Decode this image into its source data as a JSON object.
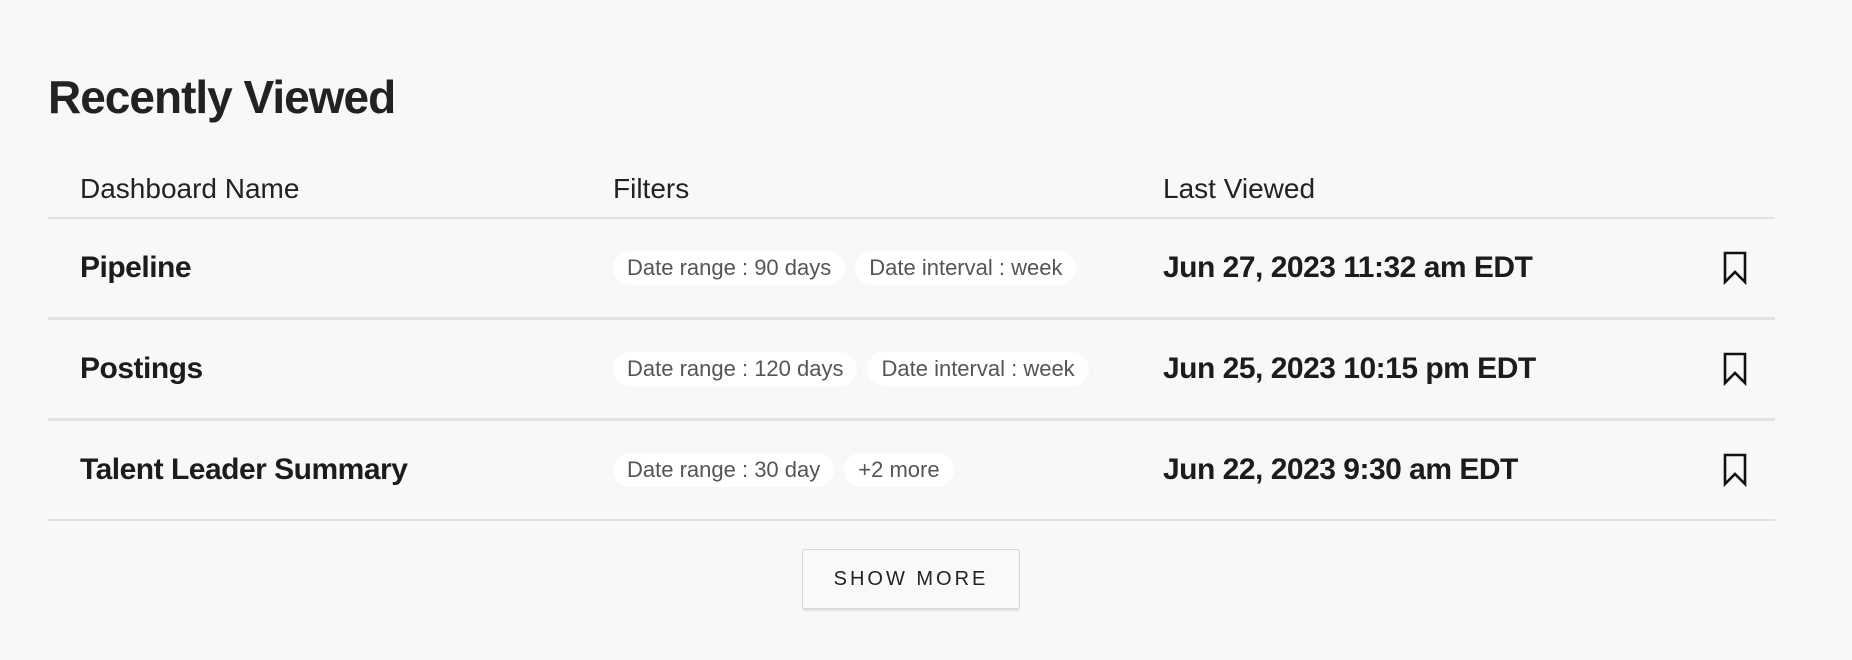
{
  "section_title": "Recently Viewed",
  "columns": {
    "name": "Dashboard Name",
    "filters": "Filters",
    "last_viewed": "Last Viewed"
  },
  "rows": [
    {
      "name": "Pipeline",
      "filters": [
        "Date range : 90 days",
        "Date interval : week"
      ],
      "last_viewed": "Jun 27, 2023 11:32 am EDT",
      "icon": "bookmark-icon"
    },
    {
      "name": "Postings",
      "filters": [
        "Date range : 120 days",
        "Date interval : week"
      ],
      "last_viewed": "Jun 25, 2023 10:15 pm EDT",
      "icon": "bookmark-icon"
    },
    {
      "name": "Talent Leader Summary",
      "filters": [
        "Date range : 30 day",
        "+2 more"
      ],
      "last_viewed": "Jun 22, 2023 9:30 am EDT",
      "icon": "bookmark-icon"
    }
  ],
  "show_more_label": "SHOW MORE"
}
